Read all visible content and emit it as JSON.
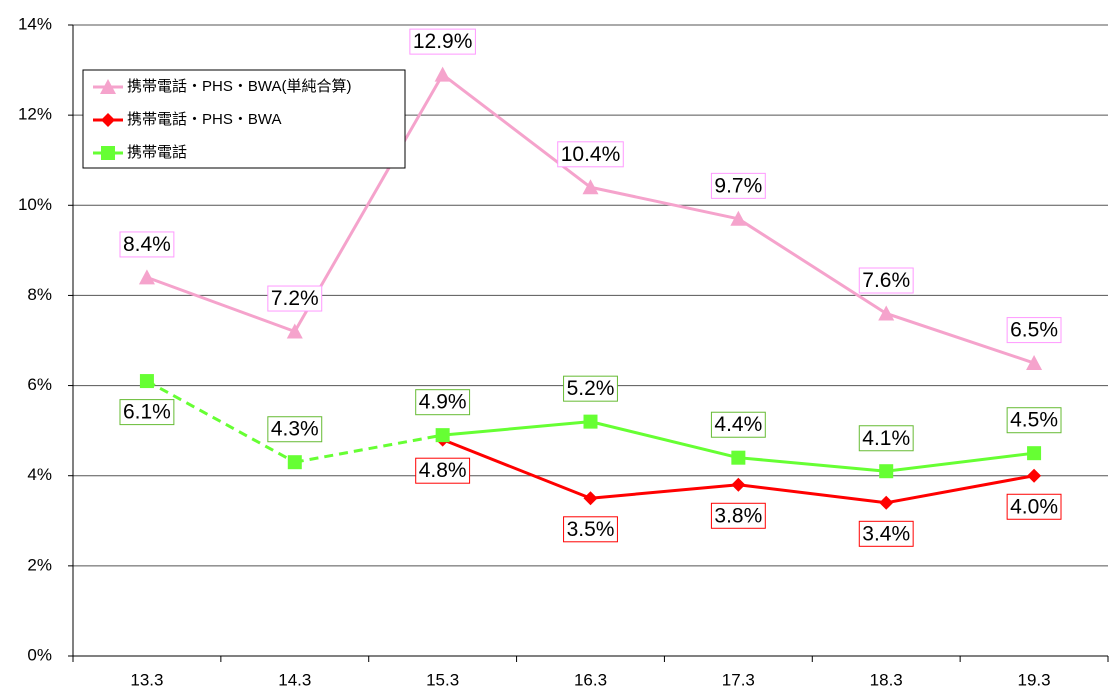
{
  "chart_data": {
    "type": "line",
    "categories": [
      "13.3",
      "14.3",
      "15.3",
      "16.3",
      "17.3",
      "18.3",
      "19.3"
    ],
    "series": [
      {
        "name": "携帯電話・PHS・BWA(単純合算)",
        "color": "#f5a3cc",
        "border_color": "#ff99ff",
        "marker": "triangle",
        "values": [
          8.4,
          7.2,
          12.9,
          10.4,
          9.7,
          7.6,
          6.5
        ],
        "value_labels": [
          "8.4%",
          "7.2%",
          "12.9%",
          "10.4%",
          "9.7%",
          "7.6%",
          "6.5%"
        ],
        "label_positions": [
          "above",
          "above",
          "above",
          "above",
          "above",
          "above",
          "above"
        ]
      },
      {
        "name": "携帯電話・PHS・BWA",
        "color": "#ff0000",
        "border_color": "#ff0000",
        "marker": "diamond",
        "values": [
          null,
          null,
          4.8,
          3.5,
          3.8,
          3.4,
          4.0
        ],
        "value_labels": [
          null,
          null,
          "4.8%",
          "3.5%",
          "3.8%",
          "3.4%",
          "4.0%"
        ],
        "label_positions": [
          null,
          null,
          "below",
          "below",
          "below",
          "below",
          "below"
        ]
      },
      {
        "name": "携帯電話",
        "color": "#66ff33",
        "border_color": "#66bb33",
        "marker": "square",
        "values": [
          6.1,
          4.3,
          4.9,
          5.2,
          4.4,
          4.1,
          4.5
        ],
        "value_labels": [
          "6.1%",
          "4.3%",
          "4.9%",
          "5.2%",
          "4.4%",
          "4.1%",
          "4.5%"
        ],
        "label_positions": [
          "below",
          "above",
          "above",
          "above",
          "above",
          "above",
          "above"
        ],
        "dashed_segments": [
          0,
          1
        ]
      }
    ],
    "ylim": [
      0,
      14
    ],
    "yticks": [
      {
        "value": 0,
        "label": "0%"
      },
      {
        "value": 2,
        "label": "2%"
      },
      {
        "value": 4,
        "label": "4%"
      },
      {
        "value": 6,
        "label": "6%"
      },
      {
        "value": 8,
        "label": "8%"
      },
      {
        "value": 10,
        "label": "10%"
      },
      {
        "value": 12,
        "label": "12%"
      },
      {
        "value": 14,
        "label": "14%"
      }
    ],
    "grid": true,
    "legend": "upper left"
  }
}
